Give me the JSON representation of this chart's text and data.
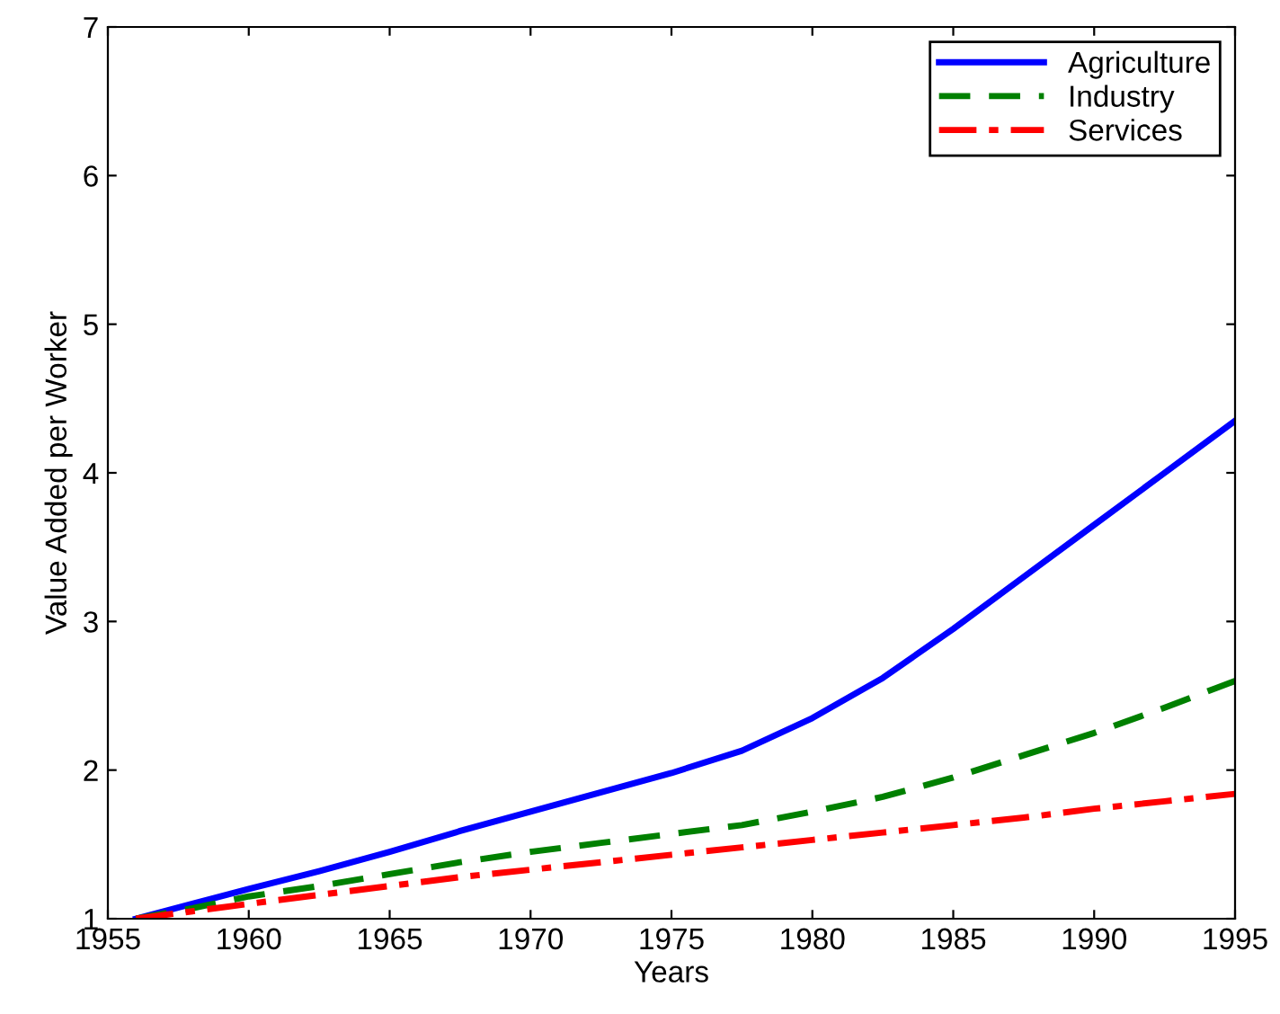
{
  "chart_data": {
    "type": "line",
    "xlabel": "Years",
    "ylabel": "Value Added per Worker",
    "x": [
      1956,
      1958,
      1960,
      1962.5,
      1965,
      1967.5,
      1970,
      1972.5,
      1975,
      1977.5,
      1980,
      1982.5,
      1985,
      1987.5,
      1990,
      1992.5,
      1995
    ],
    "series": [
      {
        "name": "Agriculture",
        "color": "#0000ff",
        "line_style": "solid",
        "values": [
          1.0,
          1.1,
          1.2,
          1.32,
          1.45,
          1.59,
          1.72,
          1.85,
          1.98,
          2.13,
          2.35,
          2.62,
          2.95,
          3.3,
          3.65,
          4.0,
          4.35
        ]
      },
      {
        "name": "Industry",
        "color": "#008000",
        "line_style": "dashed",
        "values": [
          1.0,
          1.07,
          1.15,
          1.22,
          1.3,
          1.38,
          1.45,
          1.51,
          1.57,
          1.63,
          1.72,
          1.82,
          1.95,
          2.1,
          2.25,
          2.42,
          2.6
        ]
      },
      {
        "name": "Services",
        "color": "#ff0000",
        "line_style": "dashdot",
        "values": [
          1.0,
          1.05,
          1.1,
          1.16,
          1.22,
          1.28,
          1.33,
          1.38,
          1.43,
          1.48,
          1.53,
          1.58,
          1.63,
          1.68,
          1.74,
          1.79,
          1.84
        ]
      }
    ],
    "xlim": [
      1955,
      1995
    ],
    "ylim": [
      1,
      7
    ],
    "xticks": [
      1955,
      1960,
      1965,
      1970,
      1975,
      1980,
      1985,
      1990,
      1995
    ],
    "yticks": [
      1,
      2,
      3,
      4,
      5,
      6,
      7
    ],
    "grid": false,
    "legend": "top right"
  }
}
